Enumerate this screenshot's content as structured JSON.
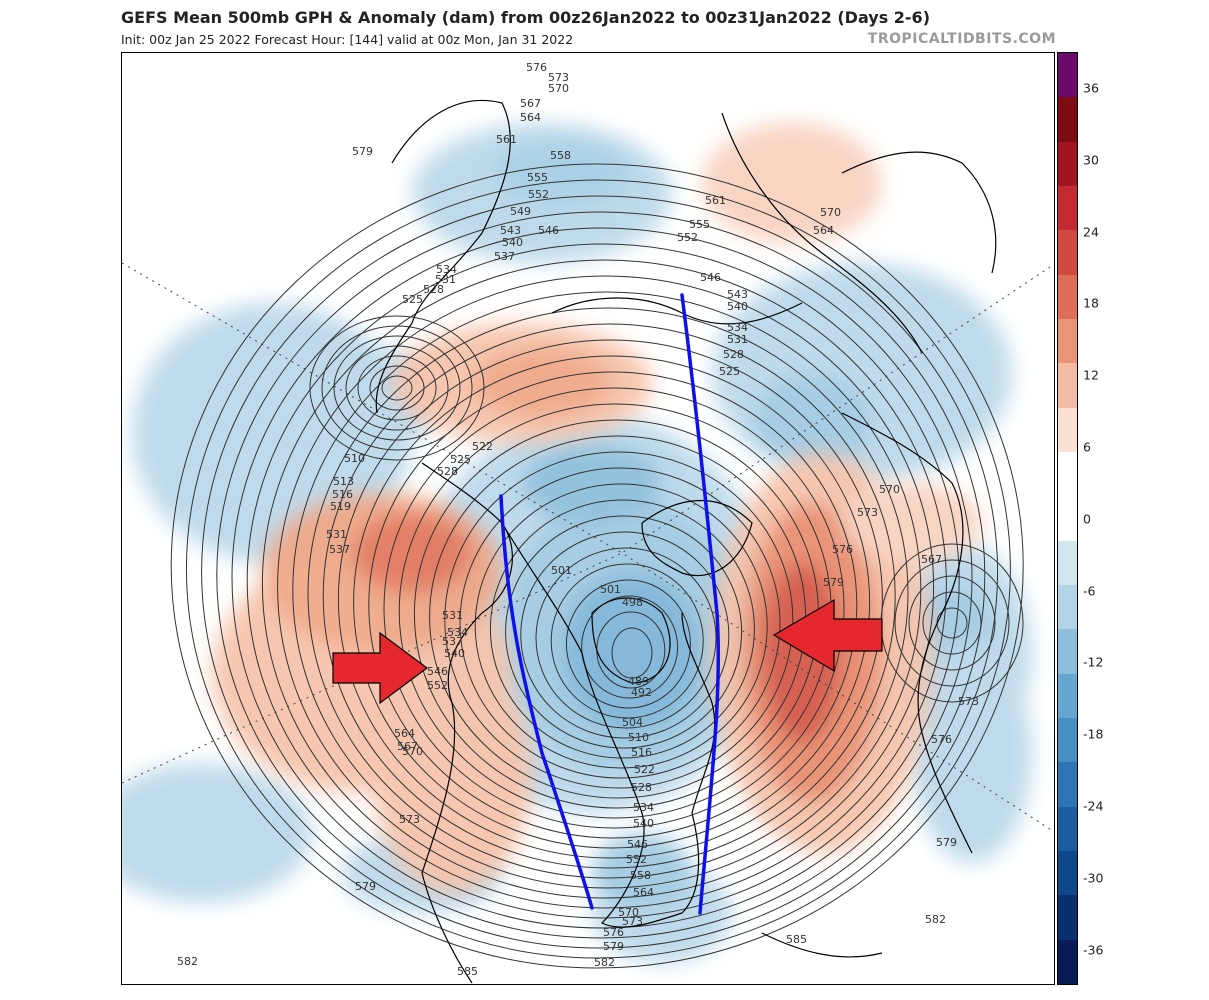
{
  "header": {
    "title": "GEFS Mean 500mb GPH & Anomaly (dam) from 00z26Jan2022 to 00z31Jan2022 (Days 2-6)",
    "subtitle": "Init: 00z Jan 25 2022   Forecast Hour: [144]   valid at 00z Mon, Jan 31 2022",
    "watermark": "TROPICALTIDBITS.COM"
  },
  "colorbar": {
    "ticks": [
      "36",
      "30",
      "24",
      "18",
      "12",
      "6",
      "0",
      "-6",
      "-12",
      "-18",
      "-24",
      "-30",
      "-36"
    ],
    "colors": [
      "#6a0a6a",
      "#7a0c12",
      "#a01520",
      "#c42a32",
      "#d04a42",
      "#de6e58",
      "#ea9478",
      "#f4bca4",
      "#fbe1d3",
      "#ffffff",
      "#ffffff",
      "#d2e6f0",
      "#b2d4e6",
      "#8cbedc",
      "#66a6d0",
      "#468ec4",
      "#2c74b4",
      "#1c5ca0",
      "#10468a",
      "#0a3070",
      "#0a1c58"
    ]
  },
  "contour_labels": [
    "576",
    "573",
    "570",
    "567",
    "564",
    "561",
    "558",
    "555",
    "552",
    "549",
    "546",
    "543",
    "540",
    "537",
    "534",
    "531",
    "528",
    "525",
    "579",
    "510",
    "513",
    "516",
    "519",
    "522",
    "525",
    "528",
    "531",
    "537",
    "561",
    "570",
    "564",
    "555",
    "552",
    "546",
    "543",
    "540",
    "534",
    "531",
    "528",
    "525",
    "570",
    "573",
    "576",
    "579",
    "567",
    "573",
    "576",
    "579",
    "582",
    "501",
    "501",
    "498",
    "489",
    "492",
    "504",
    "510",
    "516",
    "522",
    "528",
    "534",
    "540",
    "546",
    "552",
    "558",
    "564",
    "570",
    "573",
    "576",
    "579",
    "582",
    "531",
    "534",
    "537",
    "540",
    "546",
    "552",
    "564",
    "567",
    "570",
    "573",
    "579",
    "582",
    "585",
    "585"
  ],
  "annotations": {
    "left_arrow": "red-arrow-pointing-east",
    "right_arrow": "red-arrow-pointing-west",
    "trough_lines": "blue-lines"
  }
}
